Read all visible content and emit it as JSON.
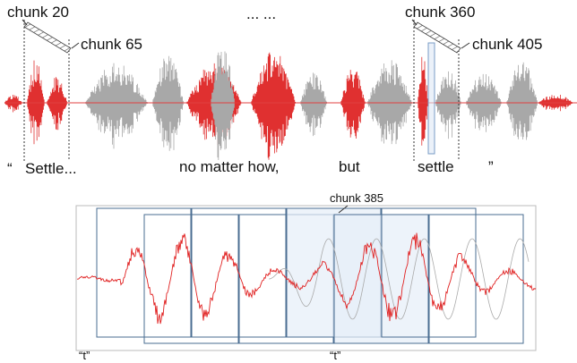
{
  "top": {
    "chunk_a_start": "chunk 20",
    "chunk_a_end": "chunk 65",
    "ellipsis": "... ...",
    "chunk_b_start": "chunk 360",
    "chunk_b_end": "chunk 405",
    "transcript": {
      "open_quote": "“",
      "word1": "Settle...",
      "word2": "no matter how,",
      "word3": "but",
      "word4": "settle",
      "close_quote": "”"
    }
  },
  "bottom": {
    "chunk_label": "chunk 385",
    "left_label": "“t”",
    "right_label": "“t”"
  }
}
